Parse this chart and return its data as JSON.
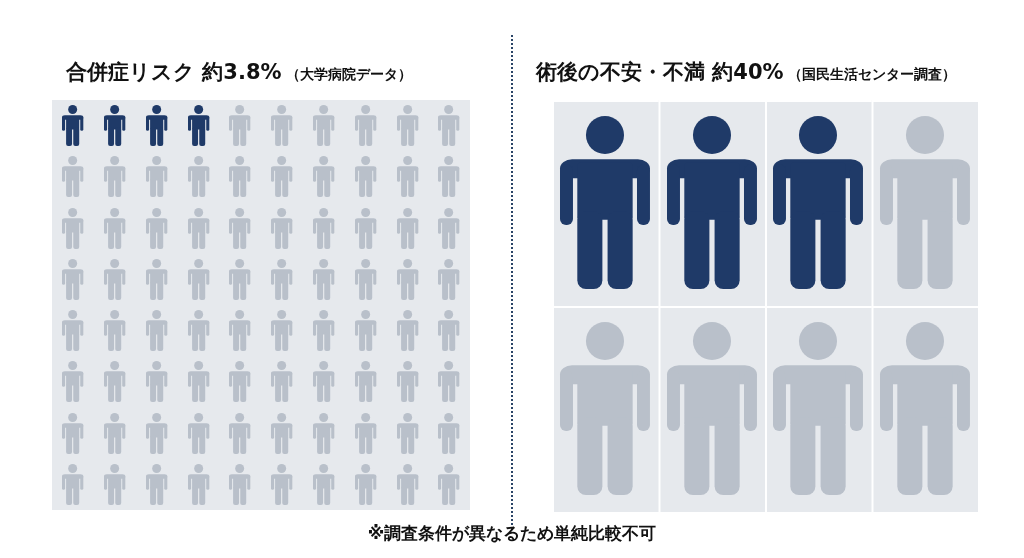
{
  "chart_data": [
    {
      "type": "other",
      "title": "合併症リスク",
      "values": [
        3.8
      ],
      "value_labels": [
        "約3.8%"
      ],
      "subtitle": "（大学病院データ）",
      "color": "#1f3a68"
    },
    {
      "type": "other",
      "title": "術後の不安・不満",
      "values": [
        40
      ],
      "value_labels": [
        "約40%"
      ],
      "subtitle": "（国民生活センター調査）",
      "color": "#1f3a68",
      "annotations": [
        "※調査条件が異なるため単純比較不可"
      ]
    }
  ]
}
